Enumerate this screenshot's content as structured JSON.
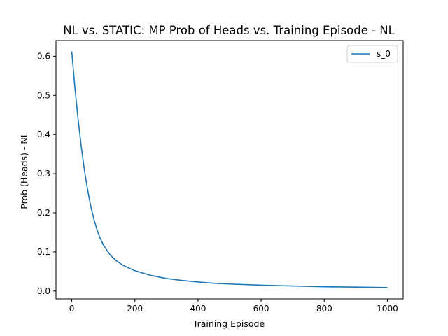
{
  "chart_data": {
    "type": "line",
    "title": "NL vs. STATIC: MP Prob of Heads vs. Training Episode - NL",
    "xlabel": "Training Episode",
    "ylabel": "Prob (Heads) - NL",
    "xlim": [
      -50,
      1050
    ],
    "ylim": [
      -0.02,
      0.64
    ],
    "xticks": [
      0,
      200,
      400,
      600,
      800,
      1000
    ],
    "yticks": [
      0.0,
      0.1,
      0.2,
      0.3,
      0.4,
      0.5,
      0.6
    ],
    "xtick_labels": [
      "0",
      "200",
      "400",
      "600",
      "800",
      "1000"
    ],
    "ytick_labels": [
      "0.0",
      "0.1",
      "0.2",
      "0.3",
      "0.4",
      "0.5",
      "0.6"
    ],
    "grid": false,
    "legend_position": "top-right",
    "series": [
      {
        "name": "s_0",
        "color": "#1f77b4",
        "x": [
          0,
          10,
          20,
          30,
          40,
          50,
          60,
          70,
          80,
          90,
          100,
          120,
          140,
          160,
          180,
          200,
          250,
          300,
          350,
          400,
          450,
          500,
          600,
          700,
          800,
          900,
          1000
        ],
        "y": [
          0.612,
          0.52,
          0.44,
          0.37,
          0.31,
          0.26,
          0.218,
          0.184,
          0.157,
          0.135,
          0.118,
          0.094,
          0.078,
          0.067,
          0.059,
          0.052,
          0.04,
          0.032,
          0.027,
          0.023,
          0.02,
          0.018,
          0.015,
          0.013,
          0.011,
          0.01,
          0.009
        ]
      }
    ]
  }
}
